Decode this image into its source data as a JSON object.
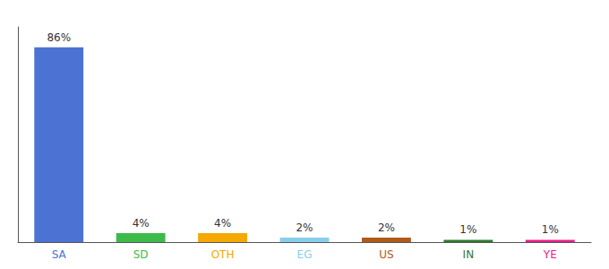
{
  "chart_data": {
    "type": "bar",
    "categories": [
      "SA",
      "SD",
      "OTH",
      "EG",
      "US",
      "IN",
      "YE"
    ],
    "values": [
      86,
      4,
      4,
      2,
      2,
      1,
      1
    ],
    "value_labels": [
      "86%",
      "4%",
      "4%",
      "2%",
      "2%",
      "1%",
      "1%"
    ],
    "colors": [
      "#4c72d4",
      "#3dbb4a",
      "#f5a800",
      "#87ceeb",
      "#b05a1a",
      "#2d7a2d",
      "#e91e8c"
    ],
    "ylim": [
      0,
      95
    ],
    "data_labels": true,
    "tick_labels": "x",
    "grid": false
  }
}
